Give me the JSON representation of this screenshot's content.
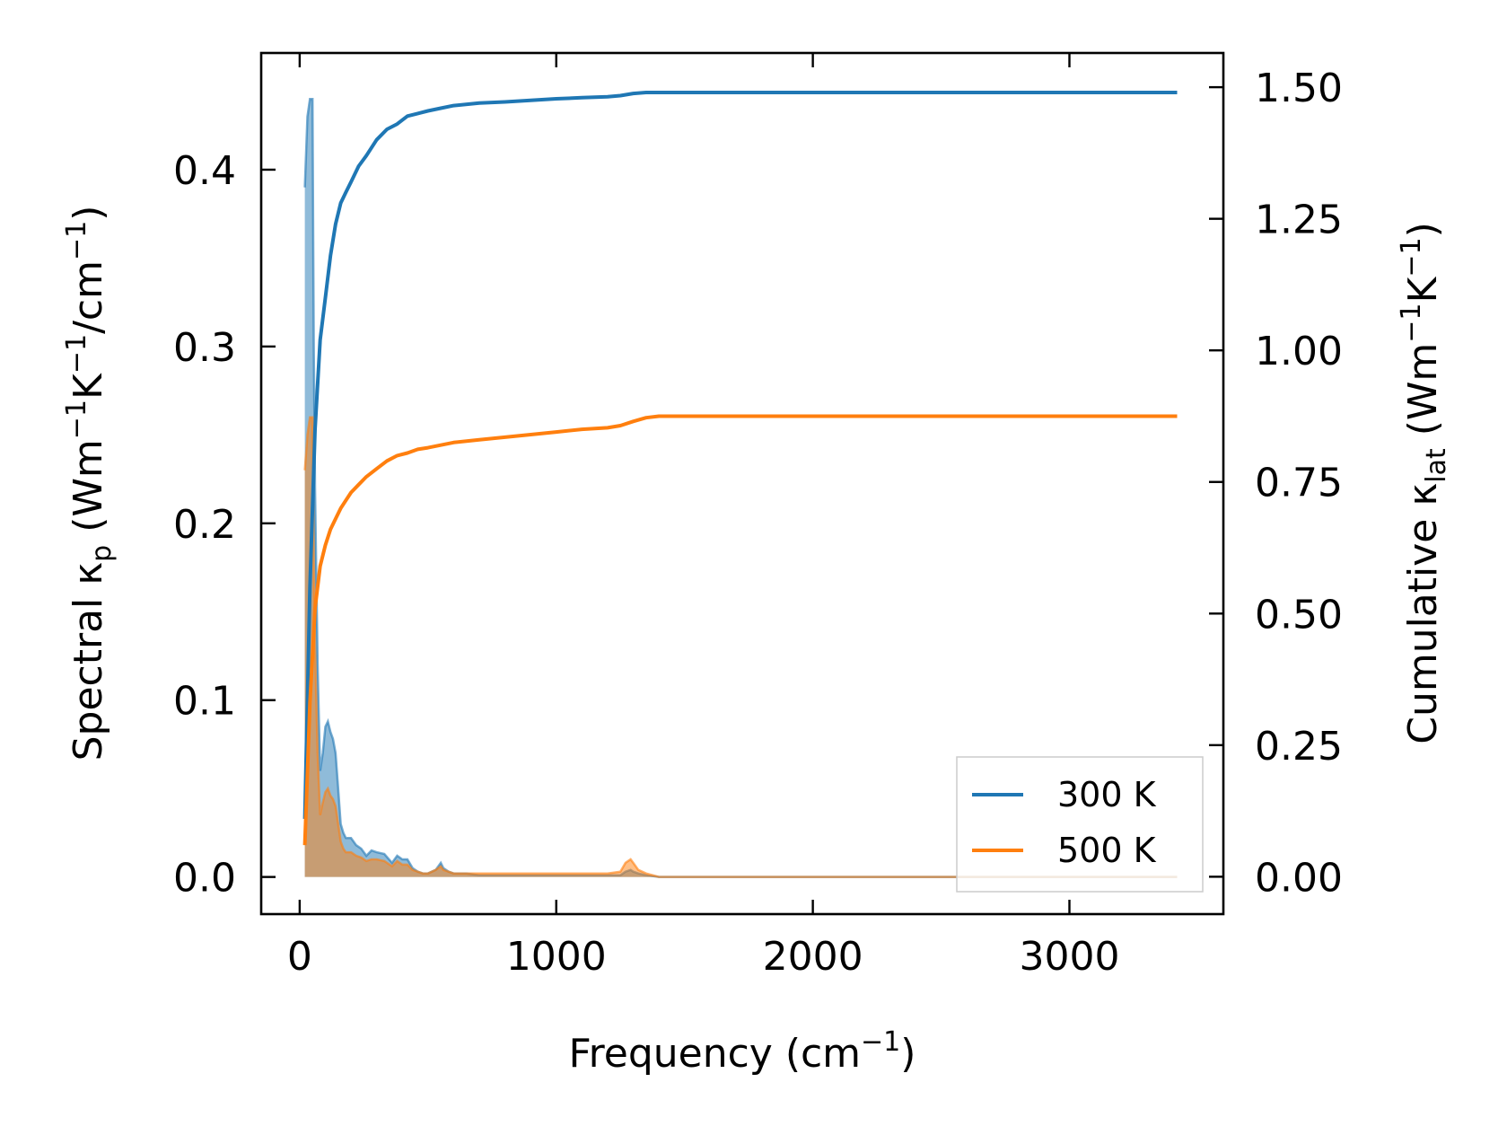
{
  "chart_data": {
    "type": "line",
    "xlabel": "Frequency (cm⁻¹)",
    "ylabel_left": "Spectral κₚ (Wm⁻¹K⁻¹/cm⁻¹)",
    "ylabel_right": "Cumulative κ_lat (Wm⁻¹K⁻¹)",
    "xlim": [
      -150,
      3600
    ],
    "ylim_left": [
      -0.021,
      0.466
    ],
    "ylim_right": [
      -0.071,
      1.565
    ],
    "x_ticks": [
      "0",
      "1000",
      "2000",
      "3000"
    ],
    "x_tick_values": [
      0,
      1000,
      2000,
      3000
    ],
    "y_left_ticks": [
      "0.0",
      "0.1",
      "0.2",
      "0.3",
      "0.4"
    ],
    "y_left_tick_values": [
      0,
      0.1,
      0.2,
      0.3,
      0.4
    ],
    "y_right_ticks": [
      "0.00",
      "0.25",
      "0.50",
      "0.75",
      "1.00",
      "1.25",
      "1.50"
    ],
    "y_right_tick_values": [
      0,
      0.25,
      0.5,
      0.75,
      1.0,
      1.25,
      1.5
    ],
    "legend_position": "bottom-right",
    "colors": {
      "300 K": "#1f77b4",
      "500 K": "#ff7f0e"
    },
    "cumulative_series": [
      {
        "name": "300 K",
        "axis": "right",
        "x": [
          20,
          40,
          60,
          80,
          100,
          120,
          140,
          160,
          180,
          200,
          230,
          260,
          300,
          340,
          380,
          420,
          460,
          500,
          550,
          600,
          700,
          800,
          900,
          1000,
          1100,
          1200,
          1250,
          1300,
          1350,
          1400,
          1600,
          2000,
          2500,
          3000,
          3420
        ],
        "y": [
          0.11,
          0.55,
          0.85,
          1.02,
          1.1,
          1.18,
          1.24,
          1.28,
          1.3,
          1.32,
          1.35,
          1.37,
          1.4,
          1.42,
          1.43,
          1.445,
          1.45,
          1.455,
          1.46,
          1.465,
          1.47,
          1.472,
          1.475,
          1.478,
          1.48,
          1.482,
          1.484,
          1.488,
          1.49,
          1.49,
          1.49,
          1.49,
          1.49,
          1.49,
          1.49
        ]
      },
      {
        "name": "500 K",
        "axis": "right",
        "x": [
          20,
          40,
          60,
          80,
          100,
          120,
          140,
          160,
          180,
          200,
          230,
          260,
          300,
          340,
          380,
          420,
          460,
          500,
          550,
          600,
          700,
          800,
          900,
          1000,
          1100,
          1200,
          1250,
          1300,
          1350,
          1400,
          1600,
          2000,
          2500,
          3000,
          3420
        ],
        "y": [
          0.06,
          0.33,
          0.51,
          0.59,
          0.63,
          0.66,
          0.68,
          0.7,
          0.715,
          0.73,
          0.745,
          0.76,
          0.775,
          0.79,
          0.8,
          0.805,
          0.812,
          0.815,
          0.82,
          0.825,
          0.83,
          0.835,
          0.84,
          0.845,
          0.85,
          0.853,
          0.857,
          0.865,
          0.872,
          0.875,
          0.875,
          0.875,
          0.875,
          0.875,
          0.875
        ]
      }
    ],
    "spectral_series": [
      {
        "name": "300 K",
        "axis": "left",
        "x": [
          20,
          30,
          40,
          50,
          55,
          60,
          70,
          80,
          90,
          100,
          110,
          120,
          130,
          140,
          150,
          160,
          170,
          180,
          200,
          220,
          240,
          260,
          280,
          300,
          330,
          360,
          380,
          400,
          420,
          440,
          460,
          480,
          500,
          530,
          550,
          560,
          580,
          600,
          650,
          700,
          800,
          900,
          1000,
          1100,
          1200,
          1250,
          1270,
          1290,
          1300,
          1320,
          1350,
          1400,
          2000,
          3000,
          3420
        ],
        "y": [
          0.39,
          0.43,
          0.44,
          0.44,
          0.3,
          0.22,
          0.12,
          0.06,
          0.07,
          0.085,
          0.088,
          0.082,
          0.078,
          0.07,
          0.05,
          0.03,
          0.025,
          0.022,
          0.022,
          0.018,
          0.016,
          0.012,
          0.015,
          0.014,
          0.013,
          0.008,
          0.012,
          0.01,
          0.01,
          0.005,
          0.003,
          0.002,
          0.002,
          0.004,
          0.008,
          0.005,
          0.003,
          0.002,
          0.002,
          0.001,
          0.001,
          0.001,
          0.001,
          0.001,
          0.001,
          0.001,
          0.003,
          0.004,
          0.003,
          0.002,
          0.001,
          0.0,
          0.0,
          0.0,
          0.0
        ]
      },
      {
        "name": "500 K",
        "axis": "left",
        "x": [
          20,
          30,
          40,
          50,
          55,
          60,
          70,
          80,
          90,
          100,
          110,
          120,
          130,
          140,
          150,
          160,
          170,
          180,
          200,
          220,
          240,
          260,
          280,
          300,
          330,
          360,
          380,
          400,
          420,
          440,
          460,
          480,
          500,
          530,
          550,
          560,
          580,
          600,
          650,
          700,
          800,
          900,
          1000,
          1100,
          1200,
          1250,
          1270,
          1290,
          1300,
          1320,
          1350,
          1400,
          2000,
          3000,
          3420
        ],
        "y": [
          0.23,
          0.25,
          0.26,
          0.26,
          0.18,
          0.13,
          0.07,
          0.035,
          0.042,
          0.048,
          0.05,
          0.046,
          0.044,
          0.04,
          0.03,
          0.02,
          0.016,
          0.014,
          0.014,
          0.012,
          0.011,
          0.009,
          0.01,
          0.01,
          0.009,
          0.006,
          0.009,
          0.007,
          0.007,
          0.004,
          0.003,
          0.002,
          0.002,
          0.004,
          0.006,
          0.004,
          0.003,
          0.002,
          0.002,
          0.002,
          0.002,
          0.002,
          0.002,
          0.002,
          0.002,
          0.003,
          0.008,
          0.01,
          0.008,
          0.004,
          0.002,
          0.0,
          0.0,
          0.0,
          0.0
        ]
      }
    ],
    "legend": [
      {
        "label": "300 K",
        "color": "#1f77b4"
      },
      {
        "label": "500 K",
        "color": "#ff7f0e"
      }
    ]
  }
}
